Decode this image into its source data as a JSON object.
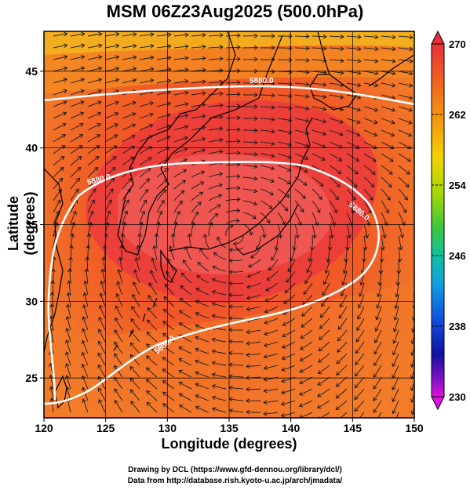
{
  "title": "MSM 06Z23Aug2025 (500.0hPa)",
  "xlabel": "Longitude (degrees)",
  "ylabel": "Latitude  (degrees)",
  "credits": [
    "Drawing by DCL (https://www.gfd-dennou.org/library/dcl/)",
    "Data from http://database.rish.kyoto-u.ac.jp/arch/jmadata/"
  ],
  "map": {
    "lon_range": [
      120,
      150
    ],
    "lat_range": [
      22.4,
      47.6
    ],
    "x_ticks": [
      "120",
      "125",
      "130",
      "135",
      "140",
      "145",
      "150"
    ],
    "y_ticks": [
      "25",
      "30",
      "35",
      "40",
      "45"
    ],
    "contour_labels": [
      "5880.0",
      "5880.0",
      "5880.0",
      "5880.0"
    ]
  },
  "colorbar": {
    "min": 230,
    "max": 270,
    "labels": [
      "270",
      "262",
      "254",
      "246",
      "238",
      "230"
    ],
    "colors": [
      "#e8303a",
      "#f06020",
      "#f59a10",
      "#f2d200",
      "#a8d800",
      "#3cc83c",
      "#10c0a0",
      "#10a0e0",
      "#1050e0",
      "#1010a0",
      "#7010c0",
      "#e010e0"
    ]
  }
}
